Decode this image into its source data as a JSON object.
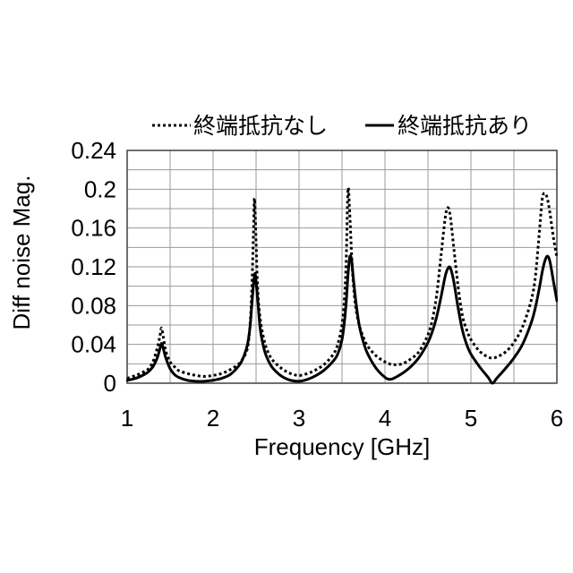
{
  "chart_data": {
    "type": "line",
    "xlabel": "Frequency [GHz]",
    "ylabel": "Diff noise Mag.",
    "xlim": [
      1,
      6
    ],
    "ylim": [
      0,
      0.24
    ],
    "x_ticks": [
      1,
      2,
      3,
      4,
      5,
      6
    ],
    "x_tick_labels": [
      "1",
      "2",
      "3",
      "4",
      "5",
      "6"
    ],
    "y_ticks": [
      0,
      0.04,
      0.08,
      0.12,
      0.16,
      0.2,
      0.24
    ],
    "y_tick_labels": [
      "0",
      "0.04",
      "0.08",
      "0.12",
      "0.16",
      "0.2",
      "0.24"
    ],
    "grid": true,
    "x_grid_step": 0.5,
    "y_grid_step": 0.02,
    "legend": "top",
    "x": [
      1.0,
      1.1,
      1.2,
      1.25,
      1.3,
      1.35,
      1.38,
      1.4,
      1.42,
      1.45,
      1.5,
      1.55,
      1.6,
      1.7,
      1.8,
      1.9,
      2.0,
      2.1,
      2.2,
      2.3,
      2.35,
      2.4,
      2.43,
      2.45,
      2.47,
      2.48,
      2.49,
      2.5,
      2.52,
      2.55,
      2.6,
      2.65,
      2.7,
      2.8,
      2.9,
      3.0,
      3.1,
      3.2,
      3.3,
      3.4,
      3.45,
      3.5,
      3.53,
      3.55,
      3.57,
      3.59,
      3.61,
      3.63,
      3.66,
      3.7,
      3.75,
      3.8,
      3.9,
      4.0,
      4.05,
      4.1,
      4.2,
      4.3,
      4.4,
      4.5,
      4.55,
      4.6,
      4.65,
      4.7,
      4.73,
      4.76,
      4.8,
      4.85,
      4.9,
      4.95,
      5.0,
      5.1,
      5.2,
      5.25,
      5.3,
      5.4,
      5.5,
      5.6,
      5.7,
      5.75,
      5.8,
      5.83,
      5.86,
      5.89,
      5.92,
      5.96,
      6.0
    ],
    "series": [
      {
        "name": "終端抵抗なし",
        "line_style": "dotted",
        "color": "#000000",
        "values": [
          0.005,
          0.008,
          0.012,
          0.015,
          0.022,
          0.036,
          0.048,
          0.057,
          0.048,
          0.033,
          0.022,
          0.017,
          0.013,
          0.01,
          0.008,
          0.007,
          0.008,
          0.01,
          0.014,
          0.02,
          0.026,
          0.036,
          0.06,
          0.095,
          0.155,
          0.19,
          0.175,
          0.145,
          0.095,
          0.065,
          0.042,
          0.03,
          0.023,
          0.015,
          0.01,
          0.008,
          0.01,
          0.014,
          0.02,
          0.03,
          0.04,
          0.06,
          0.09,
          0.13,
          0.2,
          0.175,
          0.135,
          0.105,
          0.078,
          0.06,
          0.047,
          0.038,
          0.028,
          0.022,
          0.02,
          0.019,
          0.02,
          0.025,
          0.033,
          0.05,
          0.065,
          0.09,
          0.13,
          0.17,
          0.181,
          0.172,
          0.14,
          0.1,
          0.07,
          0.055,
          0.045,
          0.033,
          0.027,
          0.026,
          0.027,
          0.032,
          0.042,
          0.058,
          0.085,
          0.11,
          0.16,
          0.19,
          0.196,
          0.19,
          0.175,
          0.15,
          0.13
        ]
      },
      {
        "name": "終端抵抗あり",
        "line_style": "solid",
        "color": "#000000",
        "values": [
          0.003,
          0.005,
          0.009,
          0.012,
          0.017,
          0.026,
          0.035,
          0.041,
          0.036,
          0.026,
          0.015,
          0.009,
          0.006,
          0.003,
          0.002,
          0.002,
          0.003,
          0.005,
          0.009,
          0.018,
          0.026,
          0.04,
          0.058,
          0.08,
          0.102,
          0.11,
          0.113,
          0.105,
          0.085,
          0.055,
          0.033,
          0.022,
          0.015,
          0.007,
          0.003,
          0.002,
          0.004,
          0.008,
          0.014,
          0.023,
          0.03,
          0.045,
          0.065,
          0.085,
          0.112,
          0.13,
          0.128,
          0.11,
          0.085,
          0.06,
          0.042,
          0.03,
          0.015,
          0.006,
          0.004,
          0.005,
          0.01,
          0.017,
          0.027,
          0.042,
          0.053,
          0.068,
          0.088,
          0.11,
          0.118,
          0.119,
          0.105,
          0.078,
          0.055,
          0.04,
          0.03,
          0.017,
          0.006,
          0.0,
          0.005,
          0.015,
          0.026,
          0.04,
          0.062,
          0.078,
          0.1,
          0.115,
          0.126,
          0.131,
          0.125,
          0.105,
          0.085
        ]
      }
    ]
  }
}
